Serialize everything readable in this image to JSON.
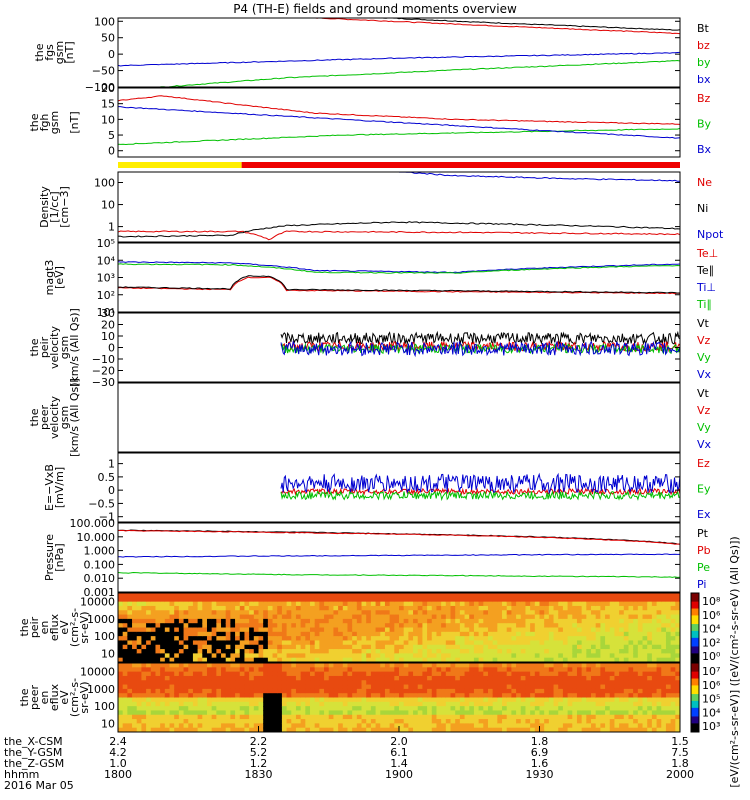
{
  "title": "P4 (TH-E) fields and ground moments overview",
  "date_label": "2016 Mar 05",
  "colors": {
    "black": "#000000",
    "red": "#e00000",
    "green": "#00c000",
    "blue": "#0000d0",
    "yellow": "#ffee00",
    "barred": "#ee0000"
  },
  "chart_data": [
    {
      "id": "fgs",
      "type": "line",
      "ylabel": [
        "the",
        "fgs",
        "gsm",
        "[nT]"
      ],
      "ylim": [
        -100,
        110
      ],
      "yticks": [
        "100",
        "50",
        "0",
        "−50",
        "−100"
      ],
      "ytick_values": [
        100,
        50,
        0,
        -50,
        -100
      ],
      "series": [
        {
          "name": "Bt",
          "color": "black",
          "x": [
            0,
            0.33,
            0.66,
            1
          ],
          "values": [
            160,
            122,
            96,
            73
          ]
        },
        {
          "name": "bz",
          "color": "red",
          "x": [
            0,
            0.33,
            0.66,
            1
          ],
          "values": [
            145,
            112,
            87,
            63
          ]
        },
        {
          "name": "by",
          "color": "green",
          "x": [
            0,
            0.3,
            0.6,
            1
          ],
          "values": [
            -110,
            -72,
            -48,
            -20
          ]
        },
        {
          "name": "bx",
          "color": "blue",
          "x": [
            0,
            0.5,
            1
          ],
          "values": [
            -35,
            -12,
            4
          ]
        }
      ]
    },
    {
      "id": "fgh",
      "type": "line",
      "ylabel": [
        "the",
        "fgh",
        "gsm",
        "",
        "[nT]"
      ],
      "ylim": [
        -2,
        20
      ],
      "yticks": [
        "20",
        "15",
        "10",
        "5",
        "0"
      ],
      "ytick_values": [
        20,
        15,
        10,
        5,
        0
      ],
      "series": [
        {
          "name": "Bz",
          "color": "red",
          "x": [
            0,
            0.08,
            0.2,
            0.35,
            0.6,
            0.85,
            1
          ],
          "values": [
            16,
            17.5,
            15,
            12,
            10,
            9,
            8.5
          ]
        },
        {
          "name": "By",
          "color": "green",
          "x": [
            0,
            0.2,
            0.4,
            0.7,
            1
          ],
          "values": [
            2,
            3.5,
            5,
            6,
            7
          ]
        },
        {
          "name": "Bx",
          "color": "blue",
          "x": [
            0,
            0.2,
            0.5,
            0.8,
            1
          ],
          "values": [
            14,
            12,
            9,
            6,
            4
          ]
        }
      ]
    },
    {
      "id": "density",
      "type": "line",
      "ylabel": [
        "Density",
        "[1/cc]",
        "[cm−3]"
      ],
      "ylim": [
        0.2,
        300
      ],
      "log": true,
      "yticks": [
        "100",
        "10",
        "1"
      ],
      "ytick_values": [
        100,
        10,
        1
      ],
      "series": [
        {
          "name": "Ne",
          "color": "red",
          "x": [
            0,
            0.22,
            0.27,
            0.3,
            0.6,
            1
          ],
          "values": [
            0.6,
            0.6,
            0.25,
            0.6,
            0.55,
            0.45
          ]
        },
        {
          "name": "Ni",
          "color": "black",
          "x": [
            0,
            0.2,
            0.3,
            0.5,
            0.75,
            1
          ],
          "values": [
            0.35,
            0.4,
            1.1,
            1.6,
            1.2,
            0.8
          ]
        },
        {
          "name": "Npot",
          "color": "blue",
          "x": [
            0.5,
            0.6,
            0.8,
            1
          ],
          "values": [
            300,
            200,
            150,
            120
          ]
        }
      ]
    },
    {
      "id": "temp",
      "type": "line",
      "ylabel": [
        "magt3",
        "[eV]"
      ],
      "ylim": [
        10,
        100000
      ],
      "log": true,
      "yticks": [
        "10⁵",
        "10⁴",
        "10³",
        "10²",
        "10¹"
      ],
      "ytick_values": [
        100000,
        10000,
        1000,
        100,
        10
      ],
      "series": [
        {
          "name": "Te⊥",
          "color": "red",
          "x": [
            0,
            0.2,
            0.23,
            0.27,
            0.3,
            0.6,
            1
          ],
          "values": [
            250,
            200,
            1000,
            1000,
            180,
            150,
            120
          ]
        },
        {
          "name": "Te∥",
          "color": "black",
          "x": [
            0,
            0.2,
            0.23,
            0.27,
            0.3,
            0.6,
            1
          ],
          "values": [
            280,
            220,
            1200,
            1200,
            200,
            170,
            130
          ]
        },
        {
          "name": "Ti⊥",
          "color": "blue",
          "x": [
            0,
            0.2,
            0.35,
            0.6,
            0.8,
            1
          ],
          "values": [
            8000,
            7000,
            2500,
            2000,
            4000,
            6000
          ]
        },
        {
          "name": "Ti∥",
          "color": "green",
          "x": [
            0,
            0.2,
            0.35,
            0.6,
            0.8,
            1
          ],
          "values": [
            6000,
            5500,
            2000,
            1800,
            3500,
            5000
          ]
        }
      ]
    },
    {
      "id": "peir_vel",
      "type": "line",
      "ylabel": [
        "the",
        "peir",
        "velocity",
        "gsm",
        "[km/s (All Qs)]"
      ],
      "ylim": [
        -30,
        30
      ],
      "yticks": [
        "30",
        "20",
        "10",
        "0",
        "−10",
        "−20",
        "−30"
      ],
      "ytick_values": [
        30,
        20,
        10,
        0,
        -10,
        -20,
        -30
      ],
      "x_start": 0.29,
      "series": [
        {
          "name": "Vt",
          "color": "black",
          "mean": 8,
          "noise": 5
        },
        {
          "name": "Vz",
          "color": "red",
          "mean": 1,
          "noise": 4
        },
        {
          "name": "Vy",
          "color": "green",
          "mean": -1,
          "noise": 4
        },
        {
          "name": "Vx",
          "color": "blue",
          "mean": -1,
          "noise": 6
        }
      ]
    },
    {
      "id": "peer_vel",
      "type": "line",
      "ylabel": [
        "the",
        "peer",
        "velocity",
        "gsm",
        "[km/s (All Qs)]"
      ],
      "yticks": [],
      "series": [
        {
          "name": "Vt",
          "color": "black"
        },
        {
          "name": "Vz",
          "color": "red"
        },
        {
          "name": "Vy",
          "color": "green"
        },
        {
          "name": "Vx",
          "color": "blue"
        }
      ]
    },
    {
      "id": "exb",
      "type": "line",
      "ylabel": [
        "E=−VxB",
        "[mV/m]"
      ],
      "ylim": [
        -1.2,
        1.4
      ],
      "yticks": [
        "1",
        "0.5",
        "0",
        "−0.5",
        "−1"
      ],
      "ytick_values": [
        1,
        0.5,
        0,
        -0.5,
        -1
      ],
      "x_start": 0.29,
      "series": [
        {
          "name": "Ez",
          "color": "red",
          "mean": -0.05,
          "noise": 0.1
        },
        {
          "name": "Ey",
          "color": "green",
          "mean": -0.2,
          "noise": 0.15
        },
        {
          "name": "Ex",
          "color": "blue",
          "mean": 0.25,
          "noise": 0.35
        }
      ]
    },
    {
      "id": "pressure",
      "type": "line",
      "ylabel": [
        "Pressure",
        "[nPa]"
      ],
      "ylim": [
        0.001,
        100
      ],
      "log": true,
      "yticks": [
        "100.000",
        "10.000",
        "1.000",
        "0.100",
        "0.010",
        "0.001"
      ],
      "ytick_values": [
        100,
        10,
        1,
        0.1,
        0.01,
        0.001
      ],
      "series": [
        {
          "name": "Pt",
          "color": "black",
          "x": [
            0,
            1
          ],
          "values": [
            30,
            3
          ]
        },
        {
          "name": "Pb",
          "color": "red",
          "x": [
            0,
            1
          ],
          "values": [
            28,
            2.8
          ]
        },
        {
          "name": "Pe",
          "color": "green",
          "x": [
            0,
            0.3,
            1
          ],
          "values": [
            0.025,
            0.018,
            0.012
          ]
        },
        {
          "name": "Pi",
          "color": "blue",
          "x": [
            0,
            0.5,
            1
          ],
          "values": [
            0.35,
            0.45,
            0.55
          ]
        }
      ]
    },
    {
      "id": "peir_en",
      "type": "heatmap",
      "ylabel": [
        "the",
        "peir",
        "en",
        "eflux",
        "eV",
        "(cm²-s-",
        "sr-eV)"
      ],
      "yticks": [
        "10000",
        "1000",
        "100",
        "10"
      ]
    },
    {
      "id": "peer_en",
      "type": "heatmap",
      "ylabel": [
        "the",
        "peer",
        "en",
        "eflux",
        "eV",
        "(cm²-s-",
        "sr-eV)"
      ],
      "yticks": [
        "10000",
        "1000",
        "100",
        "10"
      ]
    }
  ],
  "colorbar": {
    "label": "[eV/(cm²-s-sr-eV)] ([eV/(cm²-s-sr-eV) (All Qs)])",
    "ticks_top": [
      "10⁸",
      "10⁶",
      "10⁴",
      "10²",
      "10⁰"
    ],
    "ticks_bottom": [
      "10⁷",
      "10⁶",
      "10⁵",
      "10⁴",
      "10³"
    ]
  },
  "status_bar": {
    "segments": [
      {
        "to": 0.22,
        "color": "yellow"
      },
      {
        "to": 1,
        "color": "barred"
      }
    ]
  },
  "x_axis": {
    "rows": [
      {
        "label": "the_X-CSM",
        "values": [
          "2.4",
          "2.2",
          "2.0",
          "1.8",
          "1.5"
        ]
      },
      {
        "label": "the_Y-GSM",
        "values": [
          "4.2",
          "5.2",
          "6.1",
          "6.9",
          "7.5"
        ]
      },
      {
        "label": "the_Z-GSM",
        "values": [
          "1.0",
          "1.2",
          "1.4",
          "1.6",
          "1.8"
        ]
      },
      {
        "label": "hhmm",
        "values": [
          "1800",
          "1830",
          "1900",
          "1930",
          "2000"
        ]
      }
    ]
  }
}
